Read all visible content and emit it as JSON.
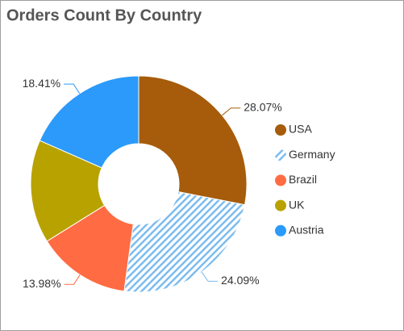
{
  "chart_data": {
    "type": "donut",
    "title": "Orders Count By Country",
    "categories": [
      "USA",
      "Germany",
      "Brazil",
      "UK",
      "Austria"
    ],
    "values": [
      28.07,
      24.09,
      13.98,
      15.45,
      18.41
    ],
    "value_labels": [
      "28.07%",
      "24.09%",
      "13.98%",
      null,
      "18.41%"
    ],
    "colors": [
      "#a65c0a",
      "#7cbcef",
      "#ff6b42",
      "#b8a200",
      "#2b9afa"
    ],
    "hovered": "Germany",
    "legend": "right"
  }
}
